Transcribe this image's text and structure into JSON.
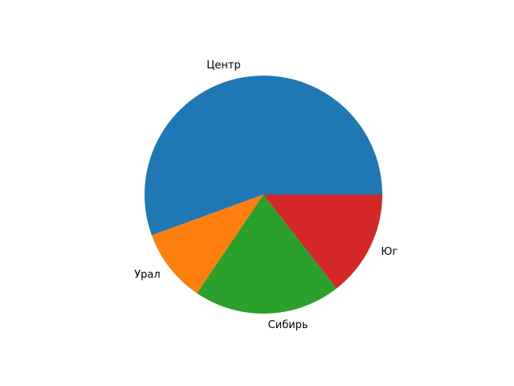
{
  "chart_data": {
    "type": "pie",
    "title": "",
    "categories": [
      "Центр",
      "Урал",
      "Сибирь",
      "Юг"
    ],
    "values": [
      50,
      9,
      18,
      13
    ],
    "colors": [
      "#1f77b4",
      "#ff7f0e",
      "#2ca02c",
      "#d62728"
    ],
    "start_angle_deg": 0,
    "direction": "counterclockwise",
    "legend": "none"
  }
}
